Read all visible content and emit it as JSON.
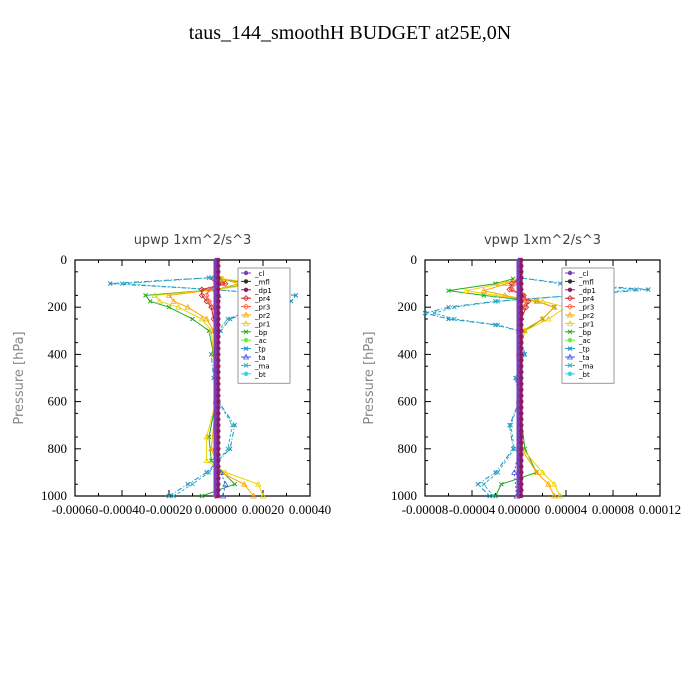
{
  "title": "taus_144_smoothH  BUDGET at25E,0N",
  "colors": {
    "cl": "#7b3fb5",
    "mfl": "#2f2f2f",
    "dp1": "#8b1a6b",
    "pr4": "#cc2222",
    "pr3": "#ff5a3c",
    "pr2": "#ffa500",
    "pr1": "#e8d400",
    "bp": "#22aa22",
    "ac": "#66ee44",
    "tp": "#1e8fbe",
    "ta": "#3b5fe0",
    "ma": "#2fb0c8",
    "bt": "#28d8e8"
  },
  "chart_data": [
    {
      "type": "line",
      "title": "upwp   1xm^2/s^3",
      "ylabel": "Pressure [hPa]",
      "xlim": [
        -0.0006,
        0.0004
      ],
      "ylim": [
        1000,
        0
      ],
      "x_ticks": [
        "-0.00060",
        "-0.00040",
        "-0.00020",
        "0.00000",
        "0.00020",
        "0.00040"
      ],
      "x_tick_values": [
        -0.0006,
        -0.0004,
        -0.0002,
        0.0,
        0.0002,
        0.0004
      ],
      "y_ticks": [
        "0",
        "200",
        "400",
        "600",
        "800",
        "1000"
      ],
      "y_tick_values": [
        0,
        200,
        400,
        600,
        800,
        1000
      ],
      "legend": [
        "_cl",
        "_mfl",
        "_dp1",
        "_pr4",
        "_pr3",
        "_pr2",
        "_pr1",
        "_bp",
        "_ac",
        "_tp",
        "_ta",
        "_ma",
        "_bt"
      ],
      "legend_position": "upper-right",
      "series": [
        {
          "name": "_tp",
          "key": "tp",
          "p": [
            75,
            100,
            125,
            150,
            175,
            200,
            250,
            300,
            400,
            500,
            600,
            700,
            800,
            900,
            950,
            1000
          ],
          "values": [
            -3e-05,
            -0.00045,
            -2e-05,
            0.00034,
            0.00032,
            0.0002,
            6e-05,
            2e-05,
            -2e-05,
            -1e-05,
            1e-05,
            8e-05,
            6e-05,
            -4e-05,
            -0.00012,
            -0.0002
          ]
        },
        {
          "name": "_ma",
          "key": "ma",
          "p": [
            75,
            100,
            125,
            150,
            175,
            200,
            250,
            300,
            400,
            500,
            600,
            700,
            800,
            900,
            950,
            1000
          ],
          "values": [
            -2e-05,
            -0.0004,
            -2e-05,
            0.0003,
            0.0003,
            0.00018,
            5e-05,
            1e-05,
            -1e-05,
            0.0,
            1e-05,
            7e-05,
            5e-05,
            -3e-05,
            -0.0001,
            -0.00018
          ]
        },
        {
          "name": "_bp",
          "key": "bp",
          "p": [
            80,
            100,
            125,
            150,
            175,
            200,
            250,
            300,
            400,
            600,
            750,
            850,
            950,
            1000
          ],
          "values": [
            2e-05,
            0.00015,
            0.0,
            -0.0003,
            -0.00028,
            -0.0002,
            -0.0001,
            -3e-05,
            -1e-05,
            0.0,
            -3e-05,
            -2e-05,
            8e-05,
            -6e-05
          ]
        },
        {
          "name": "_pr1",
          "key": "pr1",
          "p": [
            80,
            100,
            125,
            150,
            175,
            200,
            250,
            300,
            400,
            600,
            750,
            850,
            900,
            950,
            1000
          ],
          "values": [
            3e-05,
            0.00018,
            0.0,
            -0.00026,
            -0.00024,
            -0.00016,
            -6e-05,
            -2e-05,
            -1e-05,
            0.0,
            -4e-05,
            -4e-05,
            4e-05,
            0.00018,
            0.0002
          ]
        },
        {
          "name": "_pr2",
          "key": "pr2",
          "p": [
            80,
            100,
            125,
            150,
            175,
            200,
            250,
            300,
            400,
            600,
            800,
            900,
            950,
            1000
          ],
          "values": [
            2e-05,
            0.0001,
            0.0,
            -0.0002,
            -0.00018,
            -0.00012,
            -4e-05,
            -1e-05,
            0.0,
            0.0,
            -2e-05,
            2e-05,
            0.00012,
            0.00016
          ]
        },
        {
          "name": "_pr4",
          "key": "pr4",
          "p": [
            80,
            100,
            125,
            150,
            175,
            200,
            250,
            300,
            400,
            600,
            800,
            1000
          ],
          "values": [
            -1e-05,
            4e-05,
            -6e-05,
            -6e-05,
            -4e-05,
            -2e-05,
            -1e-05,
            0.0,
            0.0,
            0.0,
            0.0,
            0.0
          ]
        },
        {
          "name": "_pr3",
          "key": "pr3",
          "p": [
            80,
            100,
            125,
            150,
            175,
            200,
            250,
            300,
            400,
            600,
            800,
            1000
          ],
          "values": [
            0.0,
            3e-05,
            -3e-05,
            -4e-05,
            -3e-05,
            -1e-05,
            0.0,
            0.0,
            0.0,
            0.0,
            0.0,
            0.0
          ]
        },
        {
          "name": "_ta",
          "key": "ta",
          "p": [
            80,
            100,
            150,
            200,
            300,
            400,
            600,
            800,
            900,
            950,
            1000
          ],
          "values": [
            0.0,
            1e-05,
            1e-05,
            0.0,
            0.0,
            0.0,
            0.0,
            0.0,
            2e-05,
            4e-05,
            3e-05
          ]
        },
        {
          "name": "_cl",
          "key": "cl",
          "p": [
            0,
            1000
          ],
          "values": [
            0.0,
            0.0
          ]
        },
        {
          "name": "_dp1",
          "key": "dp1",
          "p": [
            0,
            1000
          ],
          "values": [
            1e-05,
            1e-05
          ]
        }
      ]
    },
    {
      "type": "line",
      "title": "vpwp   1xm^2/s^3",
      "ylabel": "Pressure [hPa]",
      "xlim": [
        -8e-05,
        0.00012
      ],
      "ylim": [
        1000,
        0
      ],
      "x_ticks": [
        "-0.00008",
        "-0.00004",
        "0.00000",
        "0.00004",
        "0.00008",
        "0.00012"
      ],
      "x_tick_values": [
        -8e-05,
        -4e-05,
        0.0,
        4e-05,
        8e-05,
        0.00012
      ],
      "y_ticks": [
        "0",
        "200",
        "400",
        "600",
        "800",
        "1000"
      ],
      "y_tick_values": [
        0,
        200,
        400,
        600,
        800,
        1000
      ],
      "legend": [
        "_cl",
        "_mfl",
        "_dp1",
        "_pr4",
        "_pr3",
        "_pr2",
        "_pr1",
        "_bp",
        "_ac",
        "_tp",
        "_ta",
        "_ma",
        "_bt"
      ],
      "legend_position": "upper-right",
      "series": [
        {
          "name": "_tp",
          "key": "tp",
          "p": [
            75,
            100,
            125,
            150,
            175,
            200,
            225,
            250,
            275,
            300,
            400,
            500,
            600,
            700,
            800,
            900,
            950,
            1000
          ],
          "values": [
            0.0,
            4e-05,
            0.00011,
            5e-05,
            -2e-05,
            -6e-05,
            -8e-05,
            -6e-05,
            -2e-05,
            0.0,
            5e-06,
            -3e-06,
            0.0,
            -8e-06,
            -5e-06,
            -2e-05,
            -3.5e-05,
            -2.5e-05
          ]
        },
        {
          "name": "_ma",
          "key": "ma",
          "p": [
            75,
            100,
            125,
            150,
            175,
            200,
            225,
            250,
            275,
            300,
            400,
            500,
            600,
            700,
            800,
            900,
            950,
            1000
          ],
          "values": [
            0.0,
            3.5e-05,
            0.0001,
            4.5e-05,
            -1.8e-05,
            -5.5e-05,
            -7.2e-05,
            -5.5e-05,
            -1.8e-05,
            0.0,
            4e-06,
            -2e-06,
            0.0,
            -7e-06,
            -4e-06,
            -1.8e-05,
            -3e-05,
            -2.2e-05
          ]
        },
        {
          "name": "_bp",
          "key": "bp",
          "p": [
            80,
            100,
            130,
            150,
            175,
            200,
            250,
            300,
            400,
            600,
            800,
            900,
            950,
            1000
          ],
          "values": [
            -5e-06,
            -2e-05,
            -6e-05,
            -3e-05,
            1.5e-05,
            3e-05,
            2e-05,
            5e-06,
            0.0,
            0.0,
            5e-06,
            1.5e-05,
            -1.5e-05,
            -2e-05
          ]
        },
        {
          "name": "_pr1",
          "key": "pr1",
          "p": [
            80,
            100,
            130,
            150,
            175,
            200,
            250,
            300,
            400,
            600,
            800,
            900,
            950,
            1000
          ],
          "values": [
            0.0,
            -1.5e-05,
            -4.5e-05,
            -2e-05,
            2e-05,
            4e-05,
            2.5e-05,
            5e-06,
            0.0,
            0.0,
            3e-06,
            2e-05,
            3e-05,
            3.5e-05
          ]
        },
        {
          "name": "_pr2",
          "key": "pr2",
          "p": [
            80,
            100,
            130,
            150,
            175,
            200,
            250,
            300,
            400,
            600,
            800,
            900,
            950,
            1000
          ],
          "values": [
            0.0,
            -1e-05,
            -3e-05,
            -1.2e-05,
            1.5e-05,
            3e-05,
            2e-05,
            3e-06,
            0.0,
            0.0,
            2e-06,
            1.5e-05,
            2.5e-05,
            3e-05
          ]
        },
        {
          "name": "_pr4",
          "key": "pr4",
          "p": [
            80,
            100,
            125,
            150,
            175,
            200,
            250,
            300,
            400,
            600,
            800,
            1000
          ],
          "values": [
            0.0,
            -6e-06,
            -8e-06,
            4e-06,
            8e-06,
            6e-06,
            2e-06,
            0.0,
            0.0,
            0.0,
            0.0,
            0.0
          ]
        },
        {
          "name": "_pr3",
          "key": "pr3",
          "p": [
            80,
            100,
            125,
            150,
            175,
            200,
            250,
            300,
            400,
            600,
            800,
            1000
          ],
          "values": [
            0.0,
            -4e-06,
            -6e-06,
            3e-06,
            6e-06,
            4e-06,
            1e-06,
            0.0,
            0.0,
            0.0,
            0.0,
            0.0
          ]
        },
        {
          "name": "_ta",
          "key": "ta",
          "p": [
            80,
            150,
            300,
            600,
            800,
            900,
            1000
          ],
          "values": [
            0.0,
            2e-06,
            0.0,
            0.0,
            0.0,
            -4e-06,
            -2e-06
          ]
        },
        {
          "name": "_cl",
          "key": "cl",
          "p": [
            0,
            1000
          ],
          "values": [
            0.0,
            0.0
          ]
        },
        {
          "name": "_dp1",
          "key": "dp1",
          "p": [
            0,
            1000
          ],
          "values": [
            2e-06,
            2e-06
          ]
        }
      ]
    }
  ]
}
